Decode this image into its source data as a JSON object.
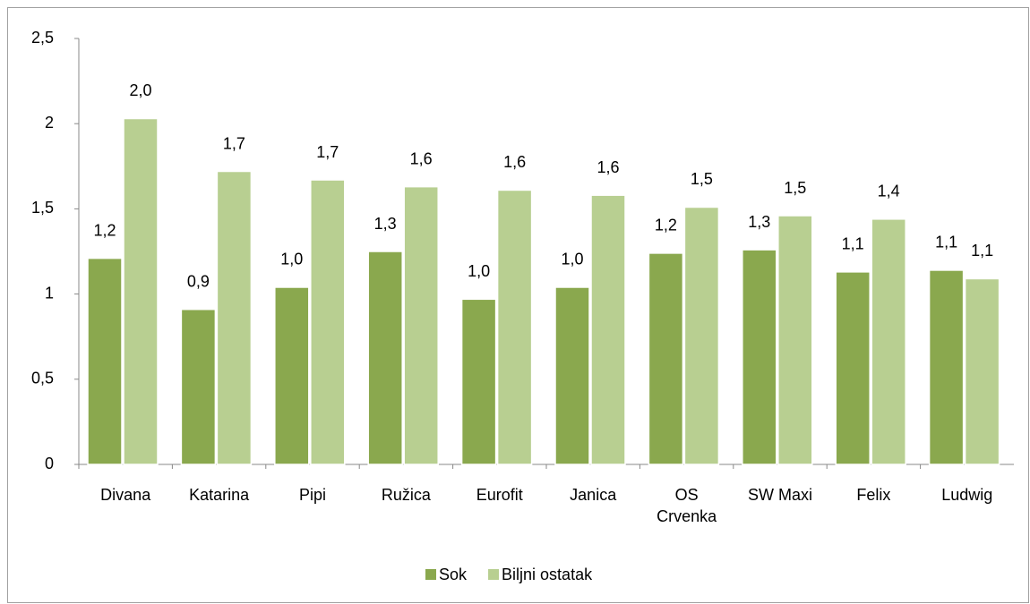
{
  "chart_data": {
    "type": "bar",
    "categories": [
      "Divana",
      "Katarina",
      "Pipi",
      "Ružica",
      "Eurofit",
      "Janica",
      "OS Crvenka",
      "SW Maxi",
      "Felix",
      "Ludwig"
    ],
    "series": [
      {
        "name": "Sok",
        "color": "#8aa84e",
        "values": [
          1.21,
          0.91,
          1.04,
          1.25,
          0.97,
          1.04,
          1.24,
          1.26,
          1.13,
          1.14
        ],
        "value_labels": [
          "1,2",
          "0,9",
          "1,0",
          "1,3",
          "1,0",
          "1,0",
          "1,2",
          "1,3",
          "1,1",
          "1,1"
        ]
      },
      {
        "name": "Biljni ostatak",
        "color": "#b8cf91",
        "values": [
          2.03,
          1.72,
          1.67,
          1.63,
          1.61,
          1.58,
          1.51,
          1.46,
          1.44,
          1.09
        ],
        "value_labels": [
          "2,0",
          "1,7",
          "1,7",
          "1,6",
          "1,6",
          "1,6",
          "1,5",
          "1,5",
          "1,4",
          "1,1"
        ]
      }
    ],
    "ylim": [
      0,
      2.5
    ],
    "yticks": [
      0,
      {
        "value": 0.5,
        "label": "0,5"
      },
      1,
      {
        "value": 1.5,
        "label": "1,5"
      },
      2,
      {
        "value": 2.5,
        "label": "2,5"
      }
    ],
    "grid": false,
    "legend": "bottom"
  }
}
